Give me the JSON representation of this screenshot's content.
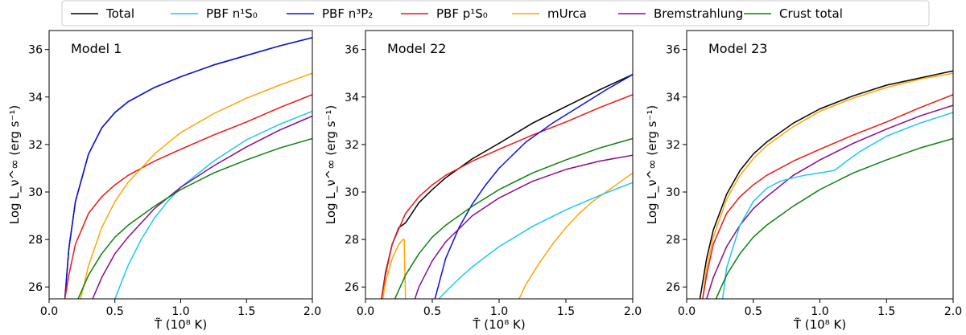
{
  "legend": [
    {
      "key": "total",
      "label": "Total",
      "color": "#000000"
    },
    {
      "key": "pbf_n1s0",
      "label": "PBF n¹S₀",
      "color": "#1ec8f0"
    },
    {
      "key": "pbf_n3p2",
      "label": "PBF n³P₂",
      "color": "#0a12e6"
    },
    {
      "key": "pbf_p1s0",
      "label": "PBF p¹S₀",
      "color": "#f01414"
    },
    {
      "key": "murca",
      "label": "mUrca",
      "color": "#ffa500"
    },
    {
      "key": "brems",
      "label": "Bremstrahlung",
      "color": "#8c0a8c"
    },
    {
      "key": "crust",
      "label": "Crust total",
      "color": "#0a820a"
    }
  ],
  "axes": {
    "ylabel": "Log L_ν^∞ (erg s⁻¹)",
    "xlabel": "T̃ (10⁸ K)",
    "xlim": [
      0.0,
      2.0
    ],
    "ylim": [
      25.5,
      36.8
    ],
    "xticks": [
      0.0,
      0.5,
      1.0,
      1.5,
      2.0
    ],
    "xtick_labels": [
      "0.0",
      "0.5",
      "1.0",
      "1.5",
      "2.0"
    ],
    "yticks": [
      26,
      28,
      30,
      32,
      34,
      36
    ],
    "ytick_labels": [
      "26",
      "28",
      "30",
      "32",
      "34",
      "36"
    ]
  },
  "chart_data": [
    {
      "type": "line",
      "title": "Model 1",
      "xlabel": "T̃ (10⁸ K)",
      "ylabel": "Log L_ν^∞ (erg s⁻¹)",
      "xlim": [
        0.0,
        2.0
      ],
      "ylim": [
        25.5,
        36.8
      ],
      "series": [
        {
          "key": "total",
          "x": [
            0.12,
            0.15,
            0.2,
            0.3,
            0.4,
            0.5,
            0.6,
            0.8,
            1.0,
            1.25,
            1.5,
            1.75,
            2.0
          ],
          "y": [
            25.5,
            27.6,
            29.6,
            31.6,
            32.7,
            33.35,
            33.8,
            34.4,
            34.85,
            35.35,
            35.75,
            36.15,
            36.5
          ]
        },
        {
          "key": "pbf_n3p2",
          "x": [
            0.12,
            0.15,
            0.2,
            0.3,
            0.4,
            0.5,
            0.6,
            0.8,
            1.0,
            1.25,
            1.5,
            1.75,
            2.0
          ],
          "y": [
            25.5,
            27.6,
            29.6,
            31.6,
            32.7,
            33.35,
            33.8,
            34.4,
            34.85,
            35.35,
            35.75,
            36.15,
            36.5
          ]
        },
        {
          "key": "pbf_p1s0",
          "x": [
            0.12,
            0.15,
            0.2,
            0.3,
            0.4,
            0.5,
            0.6,
            0.8,
            1.0,
            1.25,
            1.5,
            1.75,
            2.0
          ],
          "y": [
            25.5,
            26.5,
            27.8,
            29.1,
            29.8,
            30.3,
            30.7,
            31.3,
            31.8,
            32.4,
            32.95,
            33.55,
            34.1
          ]
        },
        {
          "key": "murca",
          "x": [
            0.24,
            0.3,
            0.4,
            0.5,
            0.6,
            0.8,
            1.0,
            1.25,
            1.5,
            1.75,
            2.0
          ],
          "y": [
            25.5,
            26.9,
            28.5,
            29.6,
            30.4,
            31.6,
            32.5,
            33.3,
            33.95,
            34.5,
            35.0
          ]
        },
        {
          "key": "pbf_n1s0",
          "x": [
            0.5,
            0.55,
            0.6,
            0.7,
            0.8,
            0.9,
            1.0,
            1.25,
            1.5,
            1.75,
            2.0
          ],
          "y": [
            25.5,
            26.2,
            26.9,
            28.0,
            28.9,
            29.6,
            30.2,
            31.3,
            32.2,
            32.85,
            33.4
          ]
        },
        {
          "key": "brems",
          "x": [
            0.33,
            0.4,
            0.5,
            0.6,
            0.8,
            1.0,
            1.25,
            1.5,
            1.75,
            2.0
          ],
          "y": [
            25.5,
            26.4,
            27.4,
            28.1,
            29.3,
            30.2,
            31.1,
            31.9,
            32.6,
            33.2
          ]
        },
        {
          "key": "crust",
          "x": [
            0.22,
            0.3,
            0.4,
            0.5,
            0.6,
            0.8,
            1.0,
            1.25,
            1.5,
            1.75,
            2.0
          ],
          "y": [
            25.5,
            26.5,
            27.4,
            28.1,
            28.6,
            29.4,
            30.1,
            30.8,
            31.35,
            31.85,
            32.25
          ]
        }
      ]
    },
    {
      "type": "line",
      "title": "Model 22",
      "xlabel": "T̃ (10⁸ K)",
      "ylabel": "Log L_ν^∞ (erg s⁻¹)",
      "xlim": [
        0.0,
        2.0
      ],
      "ylim": [
        25.5,
        36.8
      ],
      "series": [
        {
          "key": "total",
          "x": [
            0.12,
            0.15,
            0.2,
            0.25,
            0.3,
            0.4,
            0.5,
            0.6,
            0.8,
            1.0,
            1.25,
            1.5,
            1.75,
            2.0
          ],
          "y": [
            25.5,
            26.6,
            27.8,
            28.5,
            28.7,
            29.55,
            30.1,
            30.6,
            31.4,
            32.05,
            32.9,
            33.6,
            34.3,
            34.95
          ]
        },
        {
          "key": "pbf_p1s0",
          "x": [
            0.12,
            0.15,
            0.2,
            0.3,
            0.4,
            0.5,
            0.6,
            0.8,
            1.0,
            1.25,
            1.5,
            1.75,
            2.0
          ],
          "y": [
            25.5,
            26.5,
            27.8,
            29.1,
            29.8,
            30.3,
            30.7,
            31.3,
            31.8,
            32.4,
            32.95,
            33.55,
            34.1
          ]
        },
        {
          "key": "murca",
          "x": [
            0.13,
            0.15,
            0.2,
            0.25,
            0.28,
            0.29,
            0.295,
            0.3
          ],
          "y": [
            25.5,
            26.2,
            27.2,
            27.8,
            28.0,
            28.0,
            26.5,
            25.5
          ]
        },
        {
          "key": "murca",
          "x": [
            1.15,
            1.2,
            1.3,
            1.4,
            1.5,
            1.6,
            1.7,
            1.8,
            1.9,
            2.0
          ],
          "y": [
            25.5,
            26.1,
            27.0,
            27.8,
            28.5,
            29.1,
            29.6,
            30.0,
            30.4,
            30.8
          ]
        },
        {
          "key": "pbf_n3p2",
          "x": [
            0.52,
            0.6,
            0.7,
            0.8,
            0.9,
            1.0,
            1.2,
            1.4,
            1.6,
            1.8,
            2.0
          ],
          "y": [
            25.5,
            27.2,
            28.5,
            29.5,
            30.3,
            31.0,
            32.1,
            32.9,
            33.6,
            34.3,
            34.95
          ]
        },
        {
          "key": "crust",
          "x": [
            0.22,
            0.3,
            0.4,
            0.5,
            0.6,
            0.8,
            1.0,
            1.25,
            1.5,
            1.75,
            2.0
          ],
          "y": [
            25.5,
            26.5,
            27.4,
            28.1,
            28.6,
            29.4,
            30.1,
            30.8,
            31.35,
            31.85,
            32.25
          ]
        },
        {
          "key": "brems",
          "x": [
            0.37,
            0.4,
            0.5,
            0.6,
            0.8,
            1.0,
            1.25,
            1.5,
            1.75,
            2.0
          ],
          "y": [
            25.5,
            26.0,
            27.1,
            27.9,
            29.0,
            29.75,
            30.45,
            30.95,
            31.3,
            31.55
          ]
        },
        {
          "key": "pbf_n1s0",
          "x": [
            0.55,
            0.6,
            0.7,
            0.8,
            1.0,
            1.25,
            1.5,
            1.75,
            2.0
          ],
          "y": [
            25.5,
            25.8,
            26.35,
            26.85,
            27.7,
            28.55,
            29.25,
            29.85,
            30.4
          ]
        }
      ]
    },
    {
      "type": "line",
      "title": "Model 23",
      "xlabel": "T̃ (10⁸ K)",
      "ylabel": "Log L_ν^∞ (erg s⁻¹)",
      "xlim": [
        0.0,
        2.0
      ],
      "ylim": [
        25.5,
        36.8
      ],
      "series": [
        {
          "key": "total",
          "x": [
            0.1,
            0.15,
            0.2,
            0.3,
            0.4,
            0.5,
            0.6,
            0.8,
            1.0,
            1.25,
            1.5,
            1.75,
            2.0
          ],
          "y": [
            25.5,
            27.2,
            28.4,
            29.9,
            30.9,
            31.6,
            32.1,
            32.9,
            33.5,
            34.05,
            34.5,
            34.8,
            35.1
          ]
        },
        {
          "key": "murca",
          "x": [
            0.12,
            0.15,
            0.2,
            0.3,
            0.4,
            0.5,
            0.6,
            0.8,
            1.0,
            1.25,
            1.5,
            1.75,
            2.0
          ],
          "y": [
            25.5,
            26.8,
            28.1,
            29.7,
            30.7,
            31.4,
            31.95,
            32.75,
            33.4,
            33.95,
            34.4,
            34.75,
            35.0
          ]
        },
        {
          "key": "pbf_p1s0",
          "x": [
            0.12,
            0.15,
            0.2,
            0.3,
            0.4,
            0.5,
            0.6,
            0.8,
            1.0,
            1.25,
            1.5,
            1.75,
            2.0
          ],
          "y": [
            25.5,
            26.5,
            27.8,
            29.1,
            29.8,
            30.3,
            30.7,
            31.3,
            31.8,
            32.4,
            32.95,
            33.55,
            34.1
          ]
        },
        {
          "key": "brems",
          "x": [
            0.15,
            0.2,
            0.3,
            0.4,
            0.5,
            0.6,
            0.8,
            1.0,
            1.25,
            1.5,
            1.75,
            2.0
          ],
          "y": [
            25.5,
            26.4,
            27.7,
            28.6,
            29.3,
            29.8,
            30.7,
            31.35,
            32.05,
            32.65,
            33.2,
            33.65
          ]
        },
        {
          "key": "pbf_n1s0",
          "x": [
            0.27,
            0.3,
            0.4,
            0.5,
            0.6,
            0.7,
            0.8,
            0.9,
            1.0,
            1.1,
            1.12,
            1.2,
            1.3,
            1.5,
            1.75,
            2.0
          ],
          "y": [
            25.5,
            26.8,
            28.6,
            29.6,
            30.15,
            30.45,
            30.6,
            30.72,
            30.8,
            30.9,
            30.95,
            31.3,
            31.7,
            32.35,
            32.9,
            33.35
          ]
        },
        {
          "key": "crust",
          "x": [
            0.22,
            0.3,
            0.4,
            0.5,
            0.6,
            0.8,
            1.0,
            1.25,
            1.5,
            1.75,
            2.0
          ],
          "y": [
            25.5,
            26.5,
            27.4,
            28.1,
            28.6,
            29.4,
            30.1,
            30.8,
            31.35,
            31.85,
            32.25
          ]
        }
      ]
    }
  ]
}
